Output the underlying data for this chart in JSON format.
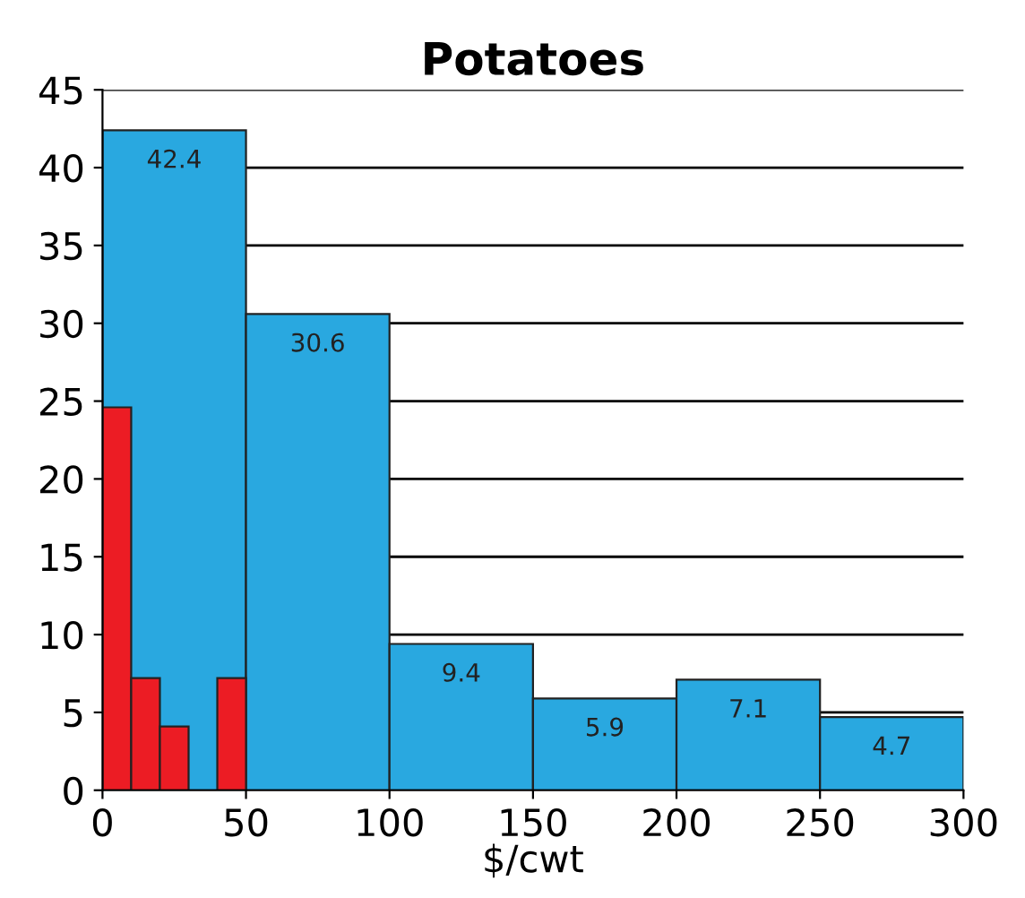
{
  "chart_data": {
    "type": "histogram",
    "title": "Potatoes",
    "xlabel": "$/cwt",
    "bins": [
      0,
      50,
      100,
      150,
      200,
      250,
      300
    ],
    "series": [
      {
        "color": "#29a8e0",
        "values": [
          42.4,
          30.6,
          9.4,
          5.9,
          7.1,
          4.7
        ],
        "value_labels": [
          "42.4",
          "30.6",
          "9.4",
          "5.9",
          "7.1",
          "4.7"
        ]
      },
      {
        "color": "#ec1c24",
        "type": "histogram",
        "bins": [
          0,
          10,
          20,
          30,
          40,
          50
        ],
        "values": [
          24.6,
          7.2,
          4.1,
          null,
          7.2
        ]
      }
    ],
    "xlim": [
      0,
      300
    ],
    "xticks": [
      0,
      50,
      100,
      150,
      200,
      250,
      300
    ],
    "ylim": [
      0,
      45
    ],
    "yticks": [
      0,
      5,
      10,
      15,
      20,
      25,
      30,
      35,
      40,
      45
    ],
    "grid": "y"
  }
}
